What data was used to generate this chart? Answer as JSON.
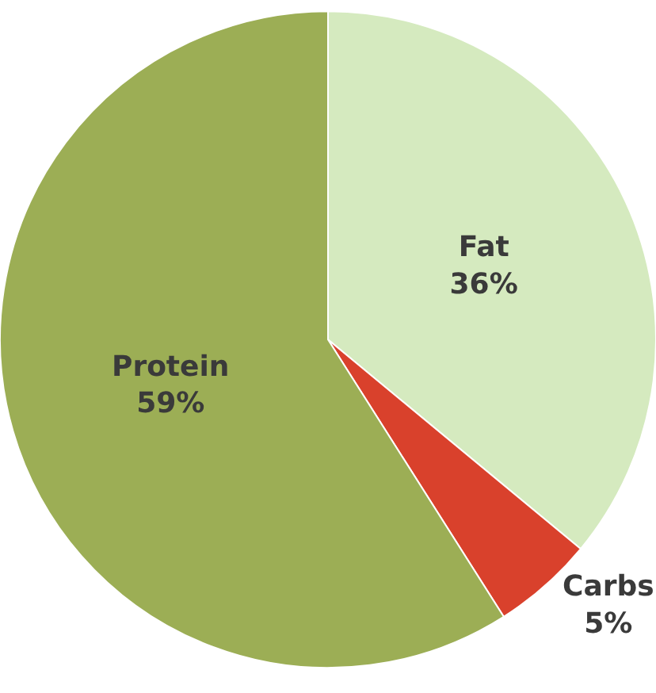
{
  "chart_data": {
    "type": "pie",
    "categories": [
      "Fat",
      "Carbs",
      "Protein"
    ],
    "values": [
      36,
      5,
      59
    ],
    "value_labels": [
      "36%",
      "5%",
      "59%"
    ],
    "colors": [
      "#d5eabf",
      "#d9412c",
      "#9cae55"
    ],
    "legend": false
  }
}
